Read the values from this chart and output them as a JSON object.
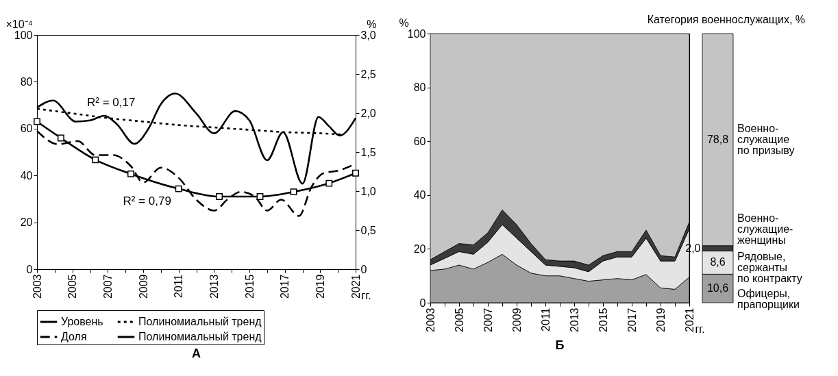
{
  "chart_data": [
    {
      "type": "line",
      "title": "А",
      "xlabel": "гг.",
      "ylabel": "×10⁻⁴",
      "y2label": "%",
      "xlim": [
        2003,
        2021
      ],
      "ylim": [
        0,
        100
      ],
      "y2lim": [
        0,
        3
      ],
      "xticks": [
        2003,
        {
          "value": 2004,
          "label": null
        },
        2005,
        {
          "value": 2006,
          "label": null
        },
        2007,
        {
          "value": 2008,
          "label": null
        },
        2009,
        {
          "value": 2010,
          "label": null
        },
        2011,
        {
          "value": 2012,
          "label": null
        },
        2013,
        {
          "value": 2014,
          "label": null
        },
        2015,
        {
          "value": 2016,
          "label": null
        },
        2017,
        {
          "value": 2018,
          "label": null
        },
        2019,
        {
          "value": 2020,
          "label": null
        },
        2021
      ],
      "yticks": [
        0,
        20,
        40,
        60,
        80,
        100
      ],
      "y2ticks": [
        0,
        {
          "value": 0.5,
          "label": "0,5"
        },
        {
          "value": 1,
          "label": "1,0"
        },
        {
          "value": 1.5,
          "label": "1,5"
        },
        {
          "value": 2,
          "label": "2,0"
        },
        {
          "value": 2.5,
          "label": "2,5"
        },
        {
          "value": 3,
          "label": "3,0"
        }
      ],
      "legend": "bottom",
      "series": [
        {
          "name": "Уровень",
          "color": "#000000",
          "line_style": "solid",
          "x": [
            2003,
            2003.9,
            2005.2,
            2006,
            2006.8,
            2007.5,
            2008.5,
            2009.3,
            2010,
            2010.8,
            2012,
            2013,
            2014.2,
            2015,
            2016,
            2016.9,
            2018,
            2018.9,
            2019.5,
            2020.1,
            2021
          ],
          "values": [
            69,
            72,
            63,
            63.5,
            65.5,
            62,
            53.5,
            60,
            70.5,
            75,
            66.5,
            58,
            67.5,
            63.5,
            46.5,
            58.5,
            36.5,
            65,
            61,
            57,
            64.5
          ]
        },
        {
          "name": "Полиномиальный тренд",
          "color": "#000000",
          "line_style": "dotted",
          "x": [
            2003,
            2005,
            2007,
            2009,
            2011,
            2013,
            2015,
            2017,
            2019,
            2020.2
          ],
          "values": [
            68.5,
            66.5,
            64.5,
            63,
            61.5,
            60.5,
            59.5,
            58.5,
            58,
            57.5
          ]
        },
        {
          "name": "Доля",
          "color": "#000000",
          "line_style": "dashed",
          "axis": "y2",
          "x": [
            2003,
            2004.2,
            2005.3,
            2006.3,
            2007.3,
            2008.3,
            2009,
            2010,
            2011,
            2012,
            2013,
            2013.8,
            2014.5,
            2015.3,
            2016,
            2016.8,
            2017.8,
            2018.5,
            2019.2,
            2020,
            2021
          ],
          "values": [
            1.77,
            1.6,
            1.64,
            1.46,
            1.46,
            1.32,
            1.11,
            1.3,
            1.17,
            0.89,
            0.75,
            0.9,
            0.99,
            0.93,
            0.75,
            0.89,
            0.68,
            1.05,
            1.23,
            1.26,
            1.35
          ]
        },
        {
          "name": "Полиномиальный тренд",
          "color": "#000000",
          "line_style": "solid",
          "marker": "square",
          "axis": "y2",
          "x": [
            2003,
            2004.35,
            2006.3,
            2008.3,
            2011,
            2013.3,
            2015.6,
            2017.5,
            2019.5,
            2021
          ],
          "values": [
            1.89,
            1.68,
            1.4,
            1.22,
            1.03,
            0.93,
            0.93,
            0.99,
            1.1,
            1.23
          ]
        }
      ],
      "annotations": [
        "R² = 0,17",
        "R² = 0,79"
      ]
    },
    {
      "type": "area",
      "title": "Б",
      "xlabel": "гг.",
      "ylabel": "%",
      "stacked": true,
      "xlim": [
        2003,
        2021
      ],
      "ylim": [
        0,
        100
      ],
      "xticks": [
        2003,
        {
          "value": 2004,
          "label": null
        },
        2005,
        {
          "value": 2006,
          "label": null
        },
        2007,
        {
          "value": 2008,
          "label": null
        },
        2009,
        {
          "value": 2010,
          "label": null
        },
        2011,
        {
          "value": 2012,
          "label": null
        },
        2013,
        {
          "value": 2014,
          "label": null
        },
        2015,
        {
          "value": 2016,
          "label": null
        },
        2017,
        {
          "value": 2018,
          "label": null
        },
        2019,
        {
          "value": 2020,
          "label": null
        },
        2021
      ],
      "yticks": [
        0,
        20,
        40,
        60,
        80,
        100
      ],
      "x": [
        2003,
        2004,
        2005,
        2006,
        2007,
        2008,
        2009,
        2010,
        2011,
        2012,
        2013,
        2014,
        2015,
        2016,
        2017,
        2018,
        2019,
        2020,
        2021
      ],
      "series": [
        {
          "color": "#a0a0a0",
          "values": [
            12,
            12.5,
            14,
            12.5,
            15,
            18,
            14,
            11,
            10,
            10,
            9,
            8,
            8.5,
            9,
            8.5,
            10.5,
            5.5,
            5,
            9.5
          ]
        },
        {
          "color": "#e4e4e4",
          "values": [
            2,
            4,
            5,
            5.5,
            7.5,
            11,
            10,
            8,
            4,
            3.5,
            4,
            3.5,
            7,
            8,
            8.5,
            13.5,
            10,
            10.5,
            18
          ]
        },
        {
          "color": "#3a3a3a",
          "values": [
            2,
            2.5,
            3,
            3.5,
            3.5,
            5.5,
            5,
            3,
            2,
            2,
            2.5,
            2.5,
            2,
            2,
            2,
            3,
            2,
            1.5,
            2.5
          ]
        },
        {
          "color": "#c4c4c4",
          "values": [
            84,
            81,
            78,
            78.5,
            74,
            65.5,
            71,
            78,
            84,
            84.5,
            84.5,
            86,
            82.5,
            81,
            81,
            73,
            82.5,
            83,
            70
          ]
        }
      ]
    },
    {
      "type": "bar",
      "title": "Категория военнослужащих, %",
      "stacked": true,
      "categories": [
        null
      ],
      "series": [
        {
          "name": "Офицеры,\nпрапорщики",
          "color": "#a0a0a0",
          "values": [
            10.6
          ],
          "value_labels": [
            "10,6"
          ]
        },
        {
          "name": "Рядовые,\nсержанты\nпо контракту",
          "color": "#e4e4e4",
          "values": [
            8.6
          ],
          "value_labels": [
            "8,6"
          ]
        },
        {
          "name": "Военно-\nслужащие-\nженщины",
          "color": "#3a3a3a",
          "values": [
            2.0
          ],
          "value_labels": [
            "2,0"
          ]
        },
        {
          "name": "Военно-\nслужащие\nпо призыву",
          "color": "#c4c4c4",
          "values": [
            78.8
          ],
          "value_labels": [
            "78,8"
          ]
        }
      ]
    }
  ]
}
